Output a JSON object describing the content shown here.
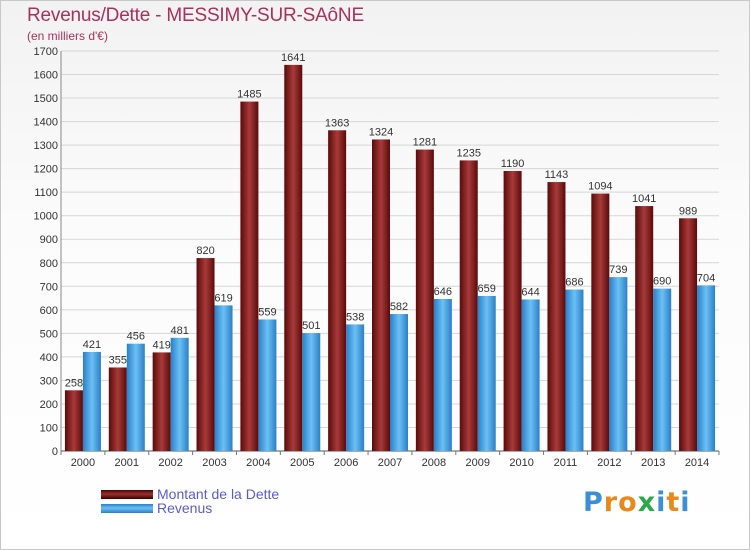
{
  "header": {
    "title": "Revenus/Dette - MESSIMY-SUR-SAôNE",
    "subtitle": "(en milliers d'€)"
  },
  "legend": {
    "items": [
      {
        "label": "Montant de la Dette",
        "color": "#7a1515"
      },
      {
        "label": "Revenus",
        "color": "#3a96dc"
      }
    ]
  },
  "logo": {
    "letters": [
      "P",
      "r",
      "o",
      "x",
      "i",
      "t",
      "i"
    ],
    "colors": [
      "#3a8fd8",
      "#e88a1a",
      "#e88a1a",
      "#2aa84a",
      "#3a8fd8",
      "#e88a1a",
      "#3a8fd8"
    ]
  },
  "chart_data": {
    "type": "bar",
    "categories": [
      "2000",
      "2001",
      "2002",
      "2003",
      "2004",
      "2005",
      "2006",
      "2007",
      "2008",
      "2009",
      "2010",
      "2011",
      "2012",
      "2013",
      "2014"
    ],
    "series": [
      {
        "name": "Montant de la Dette",
        "color": "#7a1515",
        "values": [
          258,
          355,
          419,
          820,
          1485,
          1641,
          1363,
          1324,
          1281,
          1235,
          1190,
          1143,
          1094,
          1041,
          989
        ]
      },
      {
        "name": "Revenus",
        "color": "#3a96dc",
        "values": [
          421,
          456,
          481,
          619,
          559,
          501,
          538,
          582,
          646,
          659,
          644,
          686,
          739,
          690,
          704
        ]
      }
    ],
    "ylim": [
      0,
      1700
    ],
    "ytick_step": 100,
    "grid": true
  }
}
